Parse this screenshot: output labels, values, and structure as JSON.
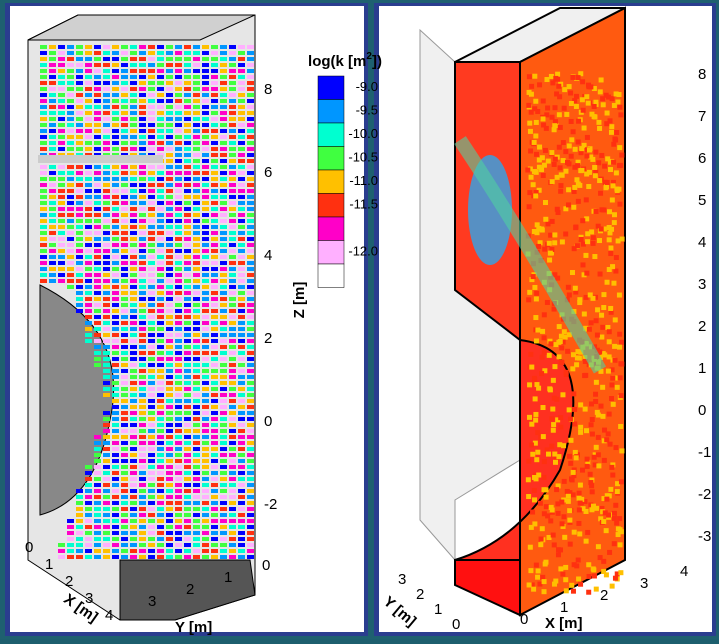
{
  "left_panel": {
    "colorbar": {
      "title_parts": [
        "log(k [m",
        "2",
        "])"
      ],
      "labels": [
        "-9.0",
        "-9.5",
        "-10.0",
        "-10.5",
        "-11.0",
        "-11.5",
        "-12.0"
      ],
      "colors": [
        "#0000ff",
        "#0096ff",
        "#00ffd0",
        "#40ff40",
        "#ffc000",
        "#ff3010",
        "#ff00c8",
        "#ffb0ff",
        "#ffffff"
      ]
    },
    "z_axis": {
      "label": "Z [m]",
      "ticks": [
        "8",
        "6",
        "4",
        "2",
        "0",
        "-2"
      ]
    },
    "x_axis": {
      "label": "X [m]",
      "ticks": [
        "0",
        "1",
        "2",
        "3",
        "4"
      ]
    },
    "y_axis": {
      "label": "Y [m]",
      "ticks": [
        "3",
        "2",
        "1",
        "0"
      ]
    }
  },
  "right_panel": {
    "z_axis": {
      "ticks": [
        "8",
        "7",
        "6",
        "5",
        "4",
        "3",
        "2",
        "1",
        "0",
        "-1",
        "-2",
        "-3"
      ]
    },
    "x_axis": {
      "label": "X [m]",
      "ticks": [
        "0",
        "1",
        "2",
        "3",
        "4"
      ]
    },
    "y_axis": {
      "label": "Y [m]",
      "ticks": [
        "3",
        "2",
        "1",
        "0"
      ]
    }
  }
}
